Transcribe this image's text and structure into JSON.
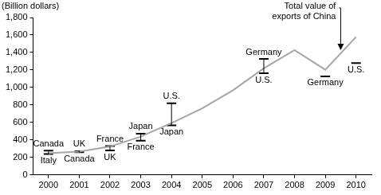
{
  "chart_data": {
    "type": "line",
    "ylabel": "(Billion dollars)",
    "categories": [
      "2000",
      "2001",
      "2002",
      "2003",
      "2004",
      "2005",
      "2006",
      "2007",
      "2008",
      "2009",
      "2010"
    ],
    "series": [
      {
        "name": "Total value of exports of China",
        "color": "#a6a6a6",
        "values": [
          249,
          266,
          325,
          438,
          593,
          762,
          969,
          1218,
          1428,
          1202,
          1578
        ]
      }
    ],
    "comparisons": [
      {
        "x": "2000",
        "value": 277,
        "label": "Canada"
      },
      {
        "x": "2000",
        "value": 240,
        "label": "Italy"
      },
      {
        "x": "2001",
        "value": 272,
        "label": "UK"
      },
      {
        "x": "2001",
        "value": 260,
        "label": "Canada"
      },
      {
        "x": "2002",
        "value": 331,
        "label": "France"
      },
      {
        "x": "2002",
        "value": 280,
        "label": "UK"
      },
      {
        "x": "2003",
        "value": 472,
        "label": "Japan"
      },
      {
        "x": "2003",
        "value": 392,
        "label": "France"
      },
      {
        "x": "2004",
        "value": 819,
        "label": "U.S."
      },
      {
        "x": "2004",
        "value": 566,
        "label": "Japan"
      },
      {
        "x": "2007",
        "value": 1326,
        "label": "Germany"
      },
      {
        "x": "2007",
        "value": 1163,
        "label": "U.S."
      },
      {
        "x": "2009",
        "value": 1127,
        "label": "Germany"
      },
      {
        "x": "2010",
        "value": 1278,
        "label": "U.S."
      }
    ],
    "ylim": [
      0,
      1800
    ],
    "yticks": [
      0,
      200,
      400,
      600,
      800,
      {
        "value": 1000,
        "label": "1,000"
      },
      {
        "value": 1200,
        "label": "1,200"
      },
      {
        "value": 1400,
        "label": "1,400"
      },
      {
        "value": 1600,
        "label": "1,600"
      },
      {
        "value": 1800,
        "label": "1,800"
      }
    ],
    "grid": false
  }
}
